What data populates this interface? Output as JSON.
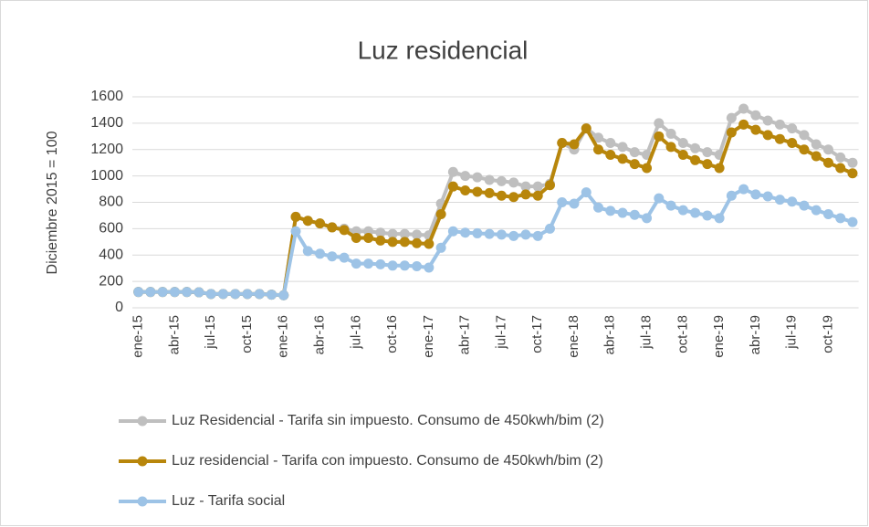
{
  "chart_data": {
    "type": "line",
    "title": "Luz residencial",
    "y_label": "Diciembre 2015 = 100",
    "categories": [
      "ene-15",
      null,
      null,
      "abr-15",
      null,
      null,
      "jul-15",
      null,
      null,
      "oct-15",
      null,
      null,
      "ene-16",
      null,
      null,
      "abr-16",
      null,
      null,
      "jul-16",
      null,
      null,
      "oct-16",
      null,
      null,
      "ene-17",
      null,
      null,
      "abr-17",
      null,
      null,
      "jul-17",
      null,
      null,
      "oct-17",
      null,
      null,
      "ene-18",
      null,
      null,
      "abr-18",
      null,
      null,
      "jul-18",
      null,
      null,
      "oct-18",
      null,
      null,
      "ene-19",
      null,
      null,
      "abr-19",
      null,
      null,
      "jul-19",
      null,
      null,
      "oct-19",
      null,
      null
    ],
    "series": [
      {
        "name": "Luz Residencial - Tarifa sin impuesto. Consumo de 450kwh/bim (2)",
        "color": "#bfbfbf",
        "values": [
          120,
          120,
          120,
          120,
          120,
          118,
          105,
          105,
          105,
          105,
          105,
          100,
          95,
          690,
          660,
          640,
          610,
          600,
          580,
          580,
          570,
          560,
          560,
          555,
          550,
          790,
          1030,
          1000,
          990,
          970,
          960,
          950,
          920,
          920,
          940,
          1250,
          1200,
          1360,
          1290,
          1250,
          1220,
          1180,
          1160,
          1400,
          1320,
          1250,
          1210,
          1180,
          1160,
          1440,
          1510,
          1460,
          1420,
          1390,
          1360,
          1310,
          1240,
          1200,
          1140,
          1100
        ]
      },
      {
        "name": "Luz residencial  - Tarifa con impuesto. Consumo de 450kwh/bim (2)",
        "color": "#b8860b",
        "values": [
          120,
          120,
          120,
          120,
          120,
          118,
          105,
          105,
          105,
          105,
          105,
          100,
          95,
          690,
          660,
          640,
          610,
          590,
          530,
          530,
          510,
          500,
          500,
          490,
          485,
          710,
          920,
          890,
          880,
          870,
          850,
          840,
          860,
          850,
          930,
          1250,
          1240,
          1360,
          1200,
          1160,
          1130,
          1090,
          1060,
          1300,
          1220,
          1160,
          1120,
          1090,
          1060,
          1330,
          1390,
          1350,
          1310,
          1280,
          1250,
          1200,
          1150,
          1100,
          1060,
          1020
        ]
      },
      {
        "name": "Luz - Tarifa social",
        "color": "#9dc3e6",
        "values": [
          120,
          120,
          120,
          120,
          120,
          118,
          105,
          105,
          105,
          105,
          105,
          100,
          95,
          580,
          430,
          410,
          390,
          380,
          335,
          335,
          330,
          320,
          320,
          315,
          305,
          455,
          580,
          570,
          565,
          560,
          555,
          545,
          555,
          545,
          600,
          800,
          790,
          875,
          760,
          735,
          720,
          705,
          680,
          830,
          775,
          740,
          720,
          700,
          680,
          850,
          900,
          860,
          845,
          820,
          805,
          775,
          740,
          710,
          680,
          650
        ]
      }
    ],
    "ylim": [
      0,
      1600
    ],
    "yticks": [
      0,
      200,
      400,
      600,
      800,
      1000,
      1200,
      1400,
      1600
    ],
    "grid": true,
    "legend": "bottom"
  }
}
